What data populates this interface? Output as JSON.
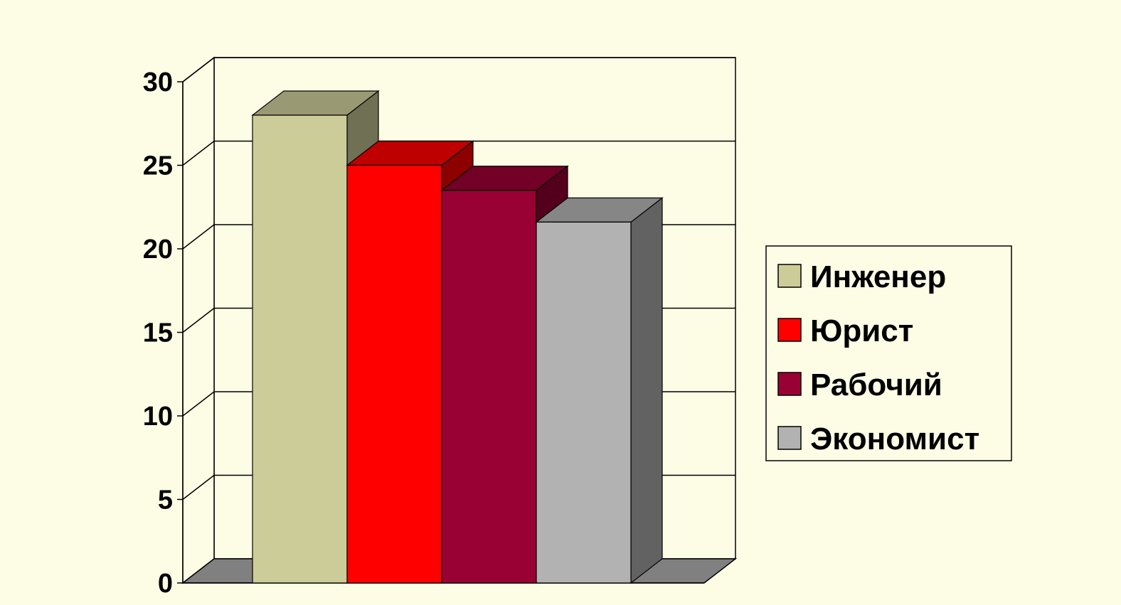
{
  "chart_data": {
    "type": "bar",
    "style": "3d-column",
    "title": "",
    "xlabel": "",
    "ylabel": "",
    "ylim": [
      0,
      30
    ],
    "yticks": [
      0,
      5,
      10,
      15,
      20,
      25,
      30
    ],
    "grid": true,
    "legend_position": "right",
    "series": [
      {
        "name": "Инженер",
        "values": [
          28
        ],
        "color": "#cccc99"
      },
      {
        "name": "Юрист",
        "values": [
          25
        ],
        "color": "#ff0000"
      },
      {
        "name": "Рабочий",
        "values": [
          23.5
        ],
        "color": "#990033"
      },
      {
        "name": "Экономист",
        "values": [
          21.6
        ],
        "color": "#b2b2b2"
      }
    ]
  },
  "colors": {
    "background": "#fdfde6",
    "frame": "#000000",
    "floor": "#808080"
  }
}
